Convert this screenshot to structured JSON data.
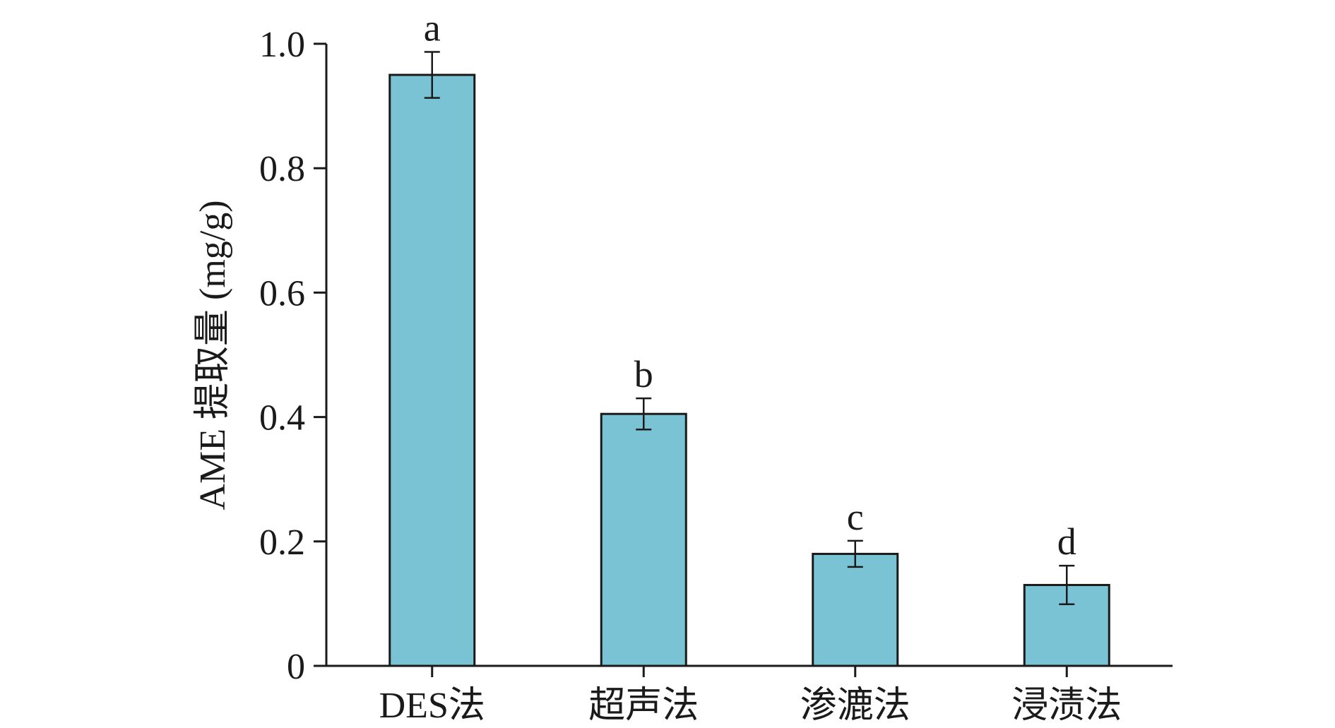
{
  "chart_data": {
    "type": "bar",
    "categories": [
      "DES法",
      "超声法",
      "渗漉法",
      "浸渍法"
    ],
    "values": [
      0.95,
      0.405,
      0.18,
      0.13
    ],
    "error": [
      0.037,
      0.025,
      0.021,
      0.031
    ],
    "significance": [
      "a",
      "b",
      "c",
      "d"
    ],
    "ylabel": "AME 提取量 (mg/g)",
    "xlabel": "",
    "ylim": [
      0,
      1.0
    ],
    "yticks": [
      0,
      0.2,
      0.4,
      0.6,
      0.8,
      1.0
    ],
    "ytick_labels": [
      "0",
      "0.2",
      "0.4",
      "0.6",
      "0.8",
      "1.0"
    ],
    "bar_color": "#7ac3d4",
    "edge_color": "#1a1a1a",
    "grid": false,
    "legend": "none"
  }
}
